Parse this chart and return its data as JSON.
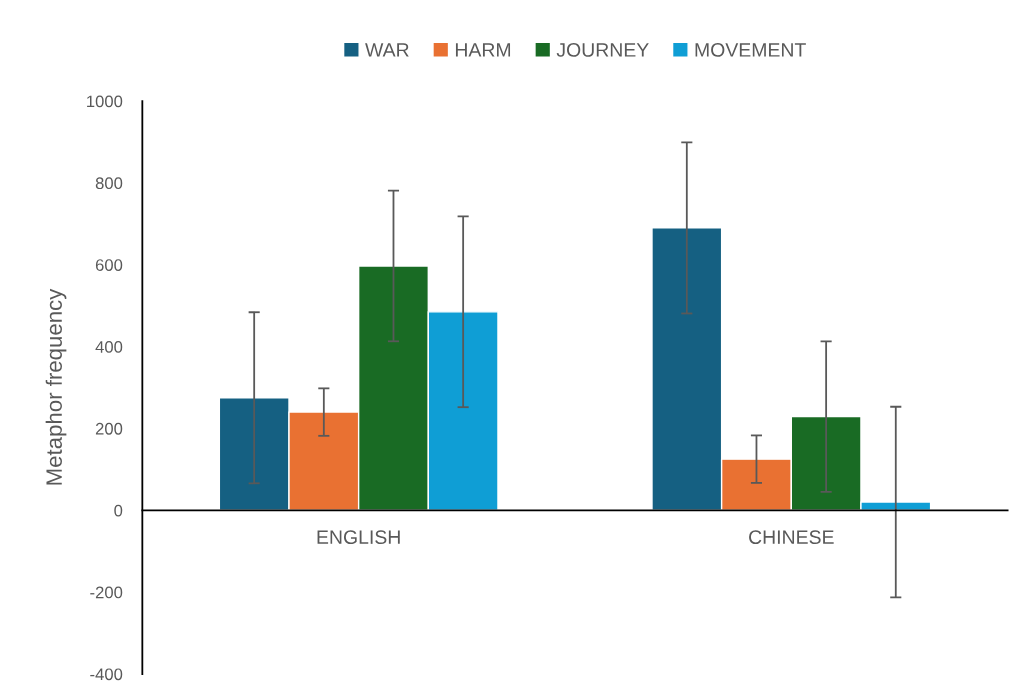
{
  "chart_data": {
    "type": "bar",
    "ylabel": "Metaphor frequency",
    "categories": [
      "ENGLISH",
      "CHINESE"
    ],
    "series": [
      {
        "name": "WAR",
        "color": "#156082",
        "values": [
          275,
          690
        ],
        "errors": [
          209,
          209
        ]
      },
      {
        "name": "HARM",
        "color": "#e97132",
        "values": [
          240,
          125
        ],
        "errors": [
          58,
          58
        ]
      },
      {
        "name": "JOURNEY",
        "color": "#196b24",
        "values": [
          597,
          229
        ],
        "errors": [
          184,
          184
        ]
      },
      {
        "name": "MOVEMENT",
        "color": "#0f9ed5",
        "values": [
          485,
          20
        ],
        "errors": [
          233,
          233
        ]
      }
    ],
    "ylim": [
      -400,
      1000
    ],
    "yticks": [
      -400,
      -200,
      0,
      200,
      400,
      600,
      800,
      1000
    ],
    "grid": false,
    "legend": "top"
  }
}
